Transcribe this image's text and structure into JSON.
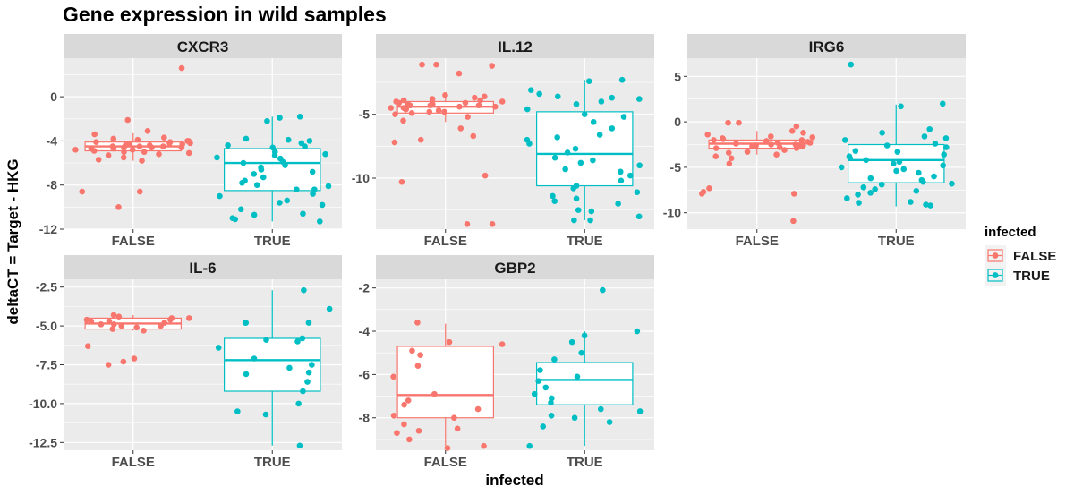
{
  "title": "Gene expression in wild samples",
  "xlabel": "infected",
  "ylabel": "deltaCT = Target - HKG",
  "legend": {
    "title": "infected",
    "placement": "right",
    "items": [
      {
        "label": "FALSE",
        "color": "#F8766D"
      },
      {
        "label": "TRUE",
        "color": "#00BFC4"
      }
    ]
  },
  "colors": {
    "panel_bg": "#EBEBEB",
    "strip_bg": "#D9D9D9",
    "grid": "#FFFFFF",
    "false": "#F8766D",
    "true": "#00BFC4"
  },
  "chart_data": [
    {
      "type": "boxplot",
      "title": "CXCR3",
      "categories": [
        "FALSE",
        "TRUE"
      ],
      "ylim": [
        -12,
        3.5
      ],
      "yticks": [
        -12,
        -8,
        -4,
        0
      ],
      "ytick_labels": [
        "-12",
        "-8",
        "-4",
        "0"
      ],
      "grid": true,
      "boxes": [
        {
          "name": "FALSE",
          "whisker_low": -5.8,
          "q1": -4.9,
          "median": -4.5,
          "q3": -4.1,
          "whisker_high": -3.3
        },
        {
          "name": "TRUE",
          "whisker_low": -11.3,
          "q1": -8.5,
          "median": -6.0,
          "q3": -4.7,
          "whisker_high": -1.8
        }
      ],
      "points": [
        {
          "group": "FALSE",
          "y": [
            2.6,
            -8.6,
            -8.6,
            -10.0,
            -2.1,
            -3.1,
            -3.4,
            -3.8,
            -3.9,
            -4.0,
            -4.1,
            -4.1,
            -4.2,
            -4.2,
            -4.3,
            -4.3,
            -4.4,
            -4.4,
            -4.5,
            -4.5,
            -4.5,
            -4.6,
            -4.6,
            -4.7,
            -4.7,
            -4.8,
            -4.8,
            -4.9,
            -5.0,
            -5.1,
            -5.2,
            -5.3,
            -5.5,
            -5.7,
            -5.8,
            -4.0,
            -4.6,
            -4.3,
            -3.7,
            -5.0
          ]
        },
        {
          "group": "TRUE",
          "y": [
            -1.8,
            -1.9,
            -2.2,
            -3.8,
            -4.0,
            -4.2,
            -4.6,
            -5.0,
            -5.3,
            -5.5,
            -5.9,
            -6.2,
            -6.4,
            -6.8,
            -7.0,
            -7.3,
            -7.8,
            -8.1,
            -8.4,
            -8.4,
            -8.8,
            -9.0,
            -9.4,
            -9.8,
            -10.2,
            -10.6,
            -11.0,
            -11.3,
            -11.1,
            -10.7,
            -9.6,
            -8.0,
            -6.6,
            -5.6,
            -4.4,
            -3.9,
            -5.2,
            -6.0,
            -7.6,
            -4.5
          ]
        }
      ]
    },
    {
      "type": "boxplot",
      "title": "IL.12",
      "categories": [
        "FALSE",
        "TRUE"
      ],
      "ylim": [
        -14.0,
        -0.6
      ],
      "yticks": [
        -10,
        -5
      ],
      "ytick_labels": [
        "-10",
        "-5"
      ],
      "grid": true,
      "boxes": [
        {
          "name": "FALSE",
          "whisker_low": -5.6,
          "q1": -4.9,
          "median": -4.4,
          "q3": -4.0,
          "whisker_high": -3.4
        },
        {
          "name": "TRUE",
          "whisker_low": -13.3,
          "q1": -10.6,
          "median": -8.1,
          "q3": -4.8,
          "whisker_high": -2.3
        }
      ],
      "points": [
        {
          "group": "FALSE",
          "y": [
            -1.1,
            -1.1,
            -1.2,
            -1.8,
            -13.6,
            -13.6,
            -10.3,
            -9.8,
            -7.2,
            -7.0,
            -6.7,
            -6.1,
            -5.5,
            -5.0,
            -4.9,
            -4.8,
            -4.7,
            -4.6,
            -4.5,
            -4.5,
            -4.4,
            -4.3,
            -4.3,
            -4.2,
            -4.1,
            -4.0,
            -4.0,
            -3.9,
            -3.8,
            -3.7,
            -3.6,
            -3.5,
            -4.6,
            -4.2,
            -5.2,
            -4.4,
            -3.9,
            -4.1,
            -4.8,
            -4.3
          ]
        },
        {
          "group": "TRUE",
          "y": [
            -2.3,
            -2.4,
            -3.1,
            -3.4,
            -3.6,
            -3.8,
            -4.2,
            -4.6,
            -5.0,
            -5.6,
            -6.1,
            -6.6,
            -7.3,
            -7.7,
            -8.0,
            -8.4,
            -8.8,
            -9.3,
            -9.8,
            -10.2,
            -10.6,
            -11.1,
            -11.6,
            -12.0,
            -12.5,
            -13.0,
            -13.3,
            -13.3,
            -12.6,
            -11.8,
            -10.8,
            -9.0,
            -7.0,
            -5.2,
            -4.0,
            -3.7,
            -6.8,
            -8.6,
            -11.4,
            -9.5
          ]
        }
      ]
    },
    {
      "type": "boxplot",
      "title": "IRG6",
      "categories": [
        "FALSE",
        "TRUE"
      ],
      "ylim": [
        -11.8,
        7.0
      ],
      "yticks": [
        -10,
        -5,
        0,
        5
      ],
      "ytick_labels": [
        "-10",
        "-5",
        "0",
        "5"
      ],
      "grid": true,
      "boxes": [
        {
          "name": "FALSE",
          "whisker_low": -3.6,
          "q1": -2.9,
          "median": -2.4,
          "q3": -2.0,
          "whisker_high": -1.0
        },
        {
          "name": "TRUE",
          "whisker_low": -9.3,
          "q1": -6.7,
          "median": -4.2,
          "q3": -2.5,
          "whisker_high": 1.9
        }
      ],
      "points": [
        {
          "group": "FALSE",
          "y": [
            -10.9,
            -7.7,
            -7.9,
            -7.9,
            -7.3,
            -4.6,
            -3.8,
            -3.6,
            -3.3,
            -3.1,
            -2.9,
            -2.8,
            -2.7,
            -2.6,
            -2.5,
            -2.4,
            -2.4,
            -2.3,
            -2.2,
            -2.1,
            -2.0,
            -1.9,
            -1.8,
            -1.6,
            -1.4,
            -1.2,
            -1.0,
            -0.5,
            -0.1,
            -0.1,
            -2.5,
            -2.2,
            -2.7,
            -2.0,
            -3.4,
            -2.3,
            -1.7,
            -2.9,
            -2.6,
            -4.0
          ]
        },
        {
          "group": "TRUE",
          "y": [
            6.3,
            2.0,
            1.7,
            -0.8,
            -1.2,
            -1.6,
            -2.0,
            -2.4,
            -2.8,
            -3.2,
            -3.6,
            -4.0,
            -4.4,
            -4.8,
            -5.2,
            -5.6,
            -6.0,
            -6.4,
            -6.8,
            -7.2,
            -7.6,
            -8.0,
            -8.4,
            -8.8,
            -9.1,
            -9.2,
            -8.9,
            -7.4,
            -6.2,
            -5.0,
            -4.2,
            -3.3,
            -2.6,
            -5.4,
            -6.6,
            -7.8,
            -1.8,
            -3.8,
            -4.6,
            -6.9
          ]
        }
      ]
    },
    {
      "type": "boxplot",
      "title": "IL-6",
      "categories": [
        "FALSE",
        "TRUE"
      ],
      "ylim": [
        -13.0,
        -2.0
      ],
      "yticks": [
        -12.5,
        -10.0,
        -7.5,
        -5.0,
        -2.5
      ],
      "ytick_labels": [
        "-12.5",
        "-10.0",
        "-7.5",
        "-5.0",
        "-2.5"
      ],
      "grid": true,
      "boxes": [
        {
          "name": "FALSE",
          "whisker_low": -5.3,
          "q1": -5.2,
          "median": -4.85,
          "q3": -4.5,
          "whisker_high": -4.3
        },
        {
          "name": "TRUE",
          "whisker_low": -12.7,
          "q1": -9.2,
          "median": -7.2,
          "q3": -5.8,
          "whisker_high": -2.7
        }
      ],
      "points": [
        {
          "group": "FALSE",
          "y": [
            -7.5,
            -7.3,
            -7.1,
            -6.3,
            -5.3,
            -5.2,
            -5.1,
            -5.0,
            -4.9,
            -4.8,
            -4.7,
            -4.6,
            -4.5,
            -4.5,
            -4.4,
            -4.3,
            -4.7,
            -4.9,
            -5.0,
            -4.6
          ]
        },
        {
          "group": "TRUE",
          "y": [
            -2.7,
            -3.9,
            -4.8,
            -4.8,
            -4.8,
            -5.8,
            -5.9,
            -6.0,
            -6.4,
            -7.1,
            -7.5,
            -7.7,
            -8.0,
            -8.1,
            -8.6,
            -9.2,
            -10.0,
            -10.5,
            -10.7,
            -12.7
          ]
        }
      ]
    },
    {
      "type": "boxplot",
      "title": "GBP2",
      "categories": [
        "FALSE",
        "TRUE"
      ],
      "ylim": [
        -9.5,
        -1.6
      ],
      "yticks": [
        -8,
        -6,
        -4,
        -2
      ],
      "ytick_labels": [
        "-8",
        "-6",
        "-4",
        "-2"
      ],
      "grid": true,
      "boxes": [
        {
          "name": "FALSE",
          "whisker_low": -9.3,
          "q1": -8.0,
          "median": -6.95,
          "q3": -4.7,
          "whisker_high": -3.65
        },
        {
          "name": "TRUE",
          "whisker_low": -9.3,
          "q1": -7.4,
          "median": -6.25,
          "q3": -5.45,
          "whisker_high": -4.0
        }
      ],
      "points": [
        {
          "group": "FALSE",
          "y": [
            -3.6,
            -4.5,
            -4.6,
            -4.9,
            -5.1,
            -5.6,
            -6.1,
            -6.9,
            -7.2,
            -7.4,
            -7.6,
            -7.9,
            -8.0,
            -8.3,
            -8.5,
            -8.6,
            -8.7,
            -9.0,
            -9.3,
            -9.4
          ]
        },
        {
          "group": "TRUE",
          "y": [
            -2.1,
            -4.0,
            -4.2,
            -4.5,
            -5.0,
            -5.3,
            -5.8,
            -6.1,
            -6.3,
            -6.6,
            -6.9,
            -7.1,
            -7.3,
            -7.6,
            -7.7,
            -7.9,
            -8.0,
            -8.2,
            -8.4,
            -9.3
          ]
        }
      ]
    }
  ]
}
